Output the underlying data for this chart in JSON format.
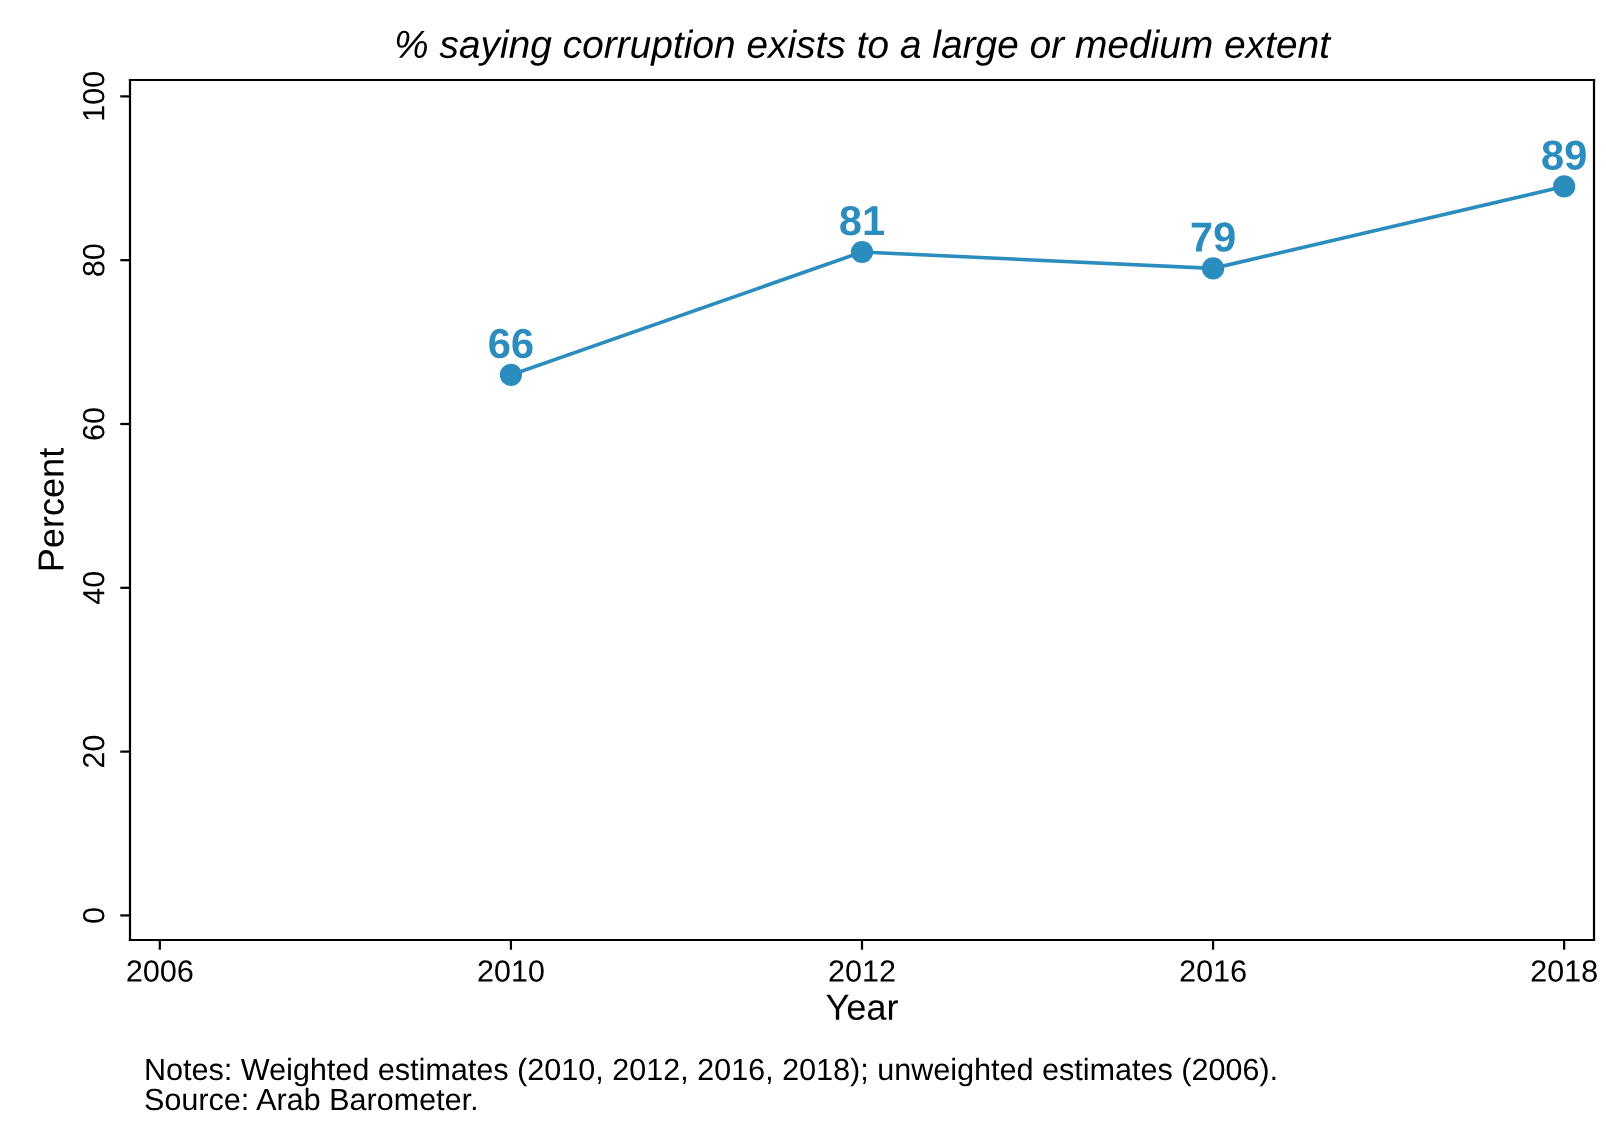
{
  "chart_data": {
    "type": "line",
    "title": "% saying corruption exists to a large or medium extent",
    "xlabel": "Year",
    "ylabel": "Percent",
    "categories": [
      "2006",
      "2010",
      "2012",
      "2016",
      "2018"
    ],
    "series": [
      {
        "color": "#2b8cbe",
        "values": [
          null,
          66,
          81,
          79,
          89
        ]
      }
    ],
    "ylim": [
      -3,
      102
    ],
    "yticks": [
      0,
      20,
      40,
      60,
      80,
      100
    ],
    "grid": false,
    "marker": "circle",
    "line_style": "solid",
    "data_labels": true,
    "annotations": [
      "Notes: Weighted estimates (2010, 2012, 2016, 2018); unweighted estimates (2006).",
      "Source: Arab Barometer."
    ]
  }
}
